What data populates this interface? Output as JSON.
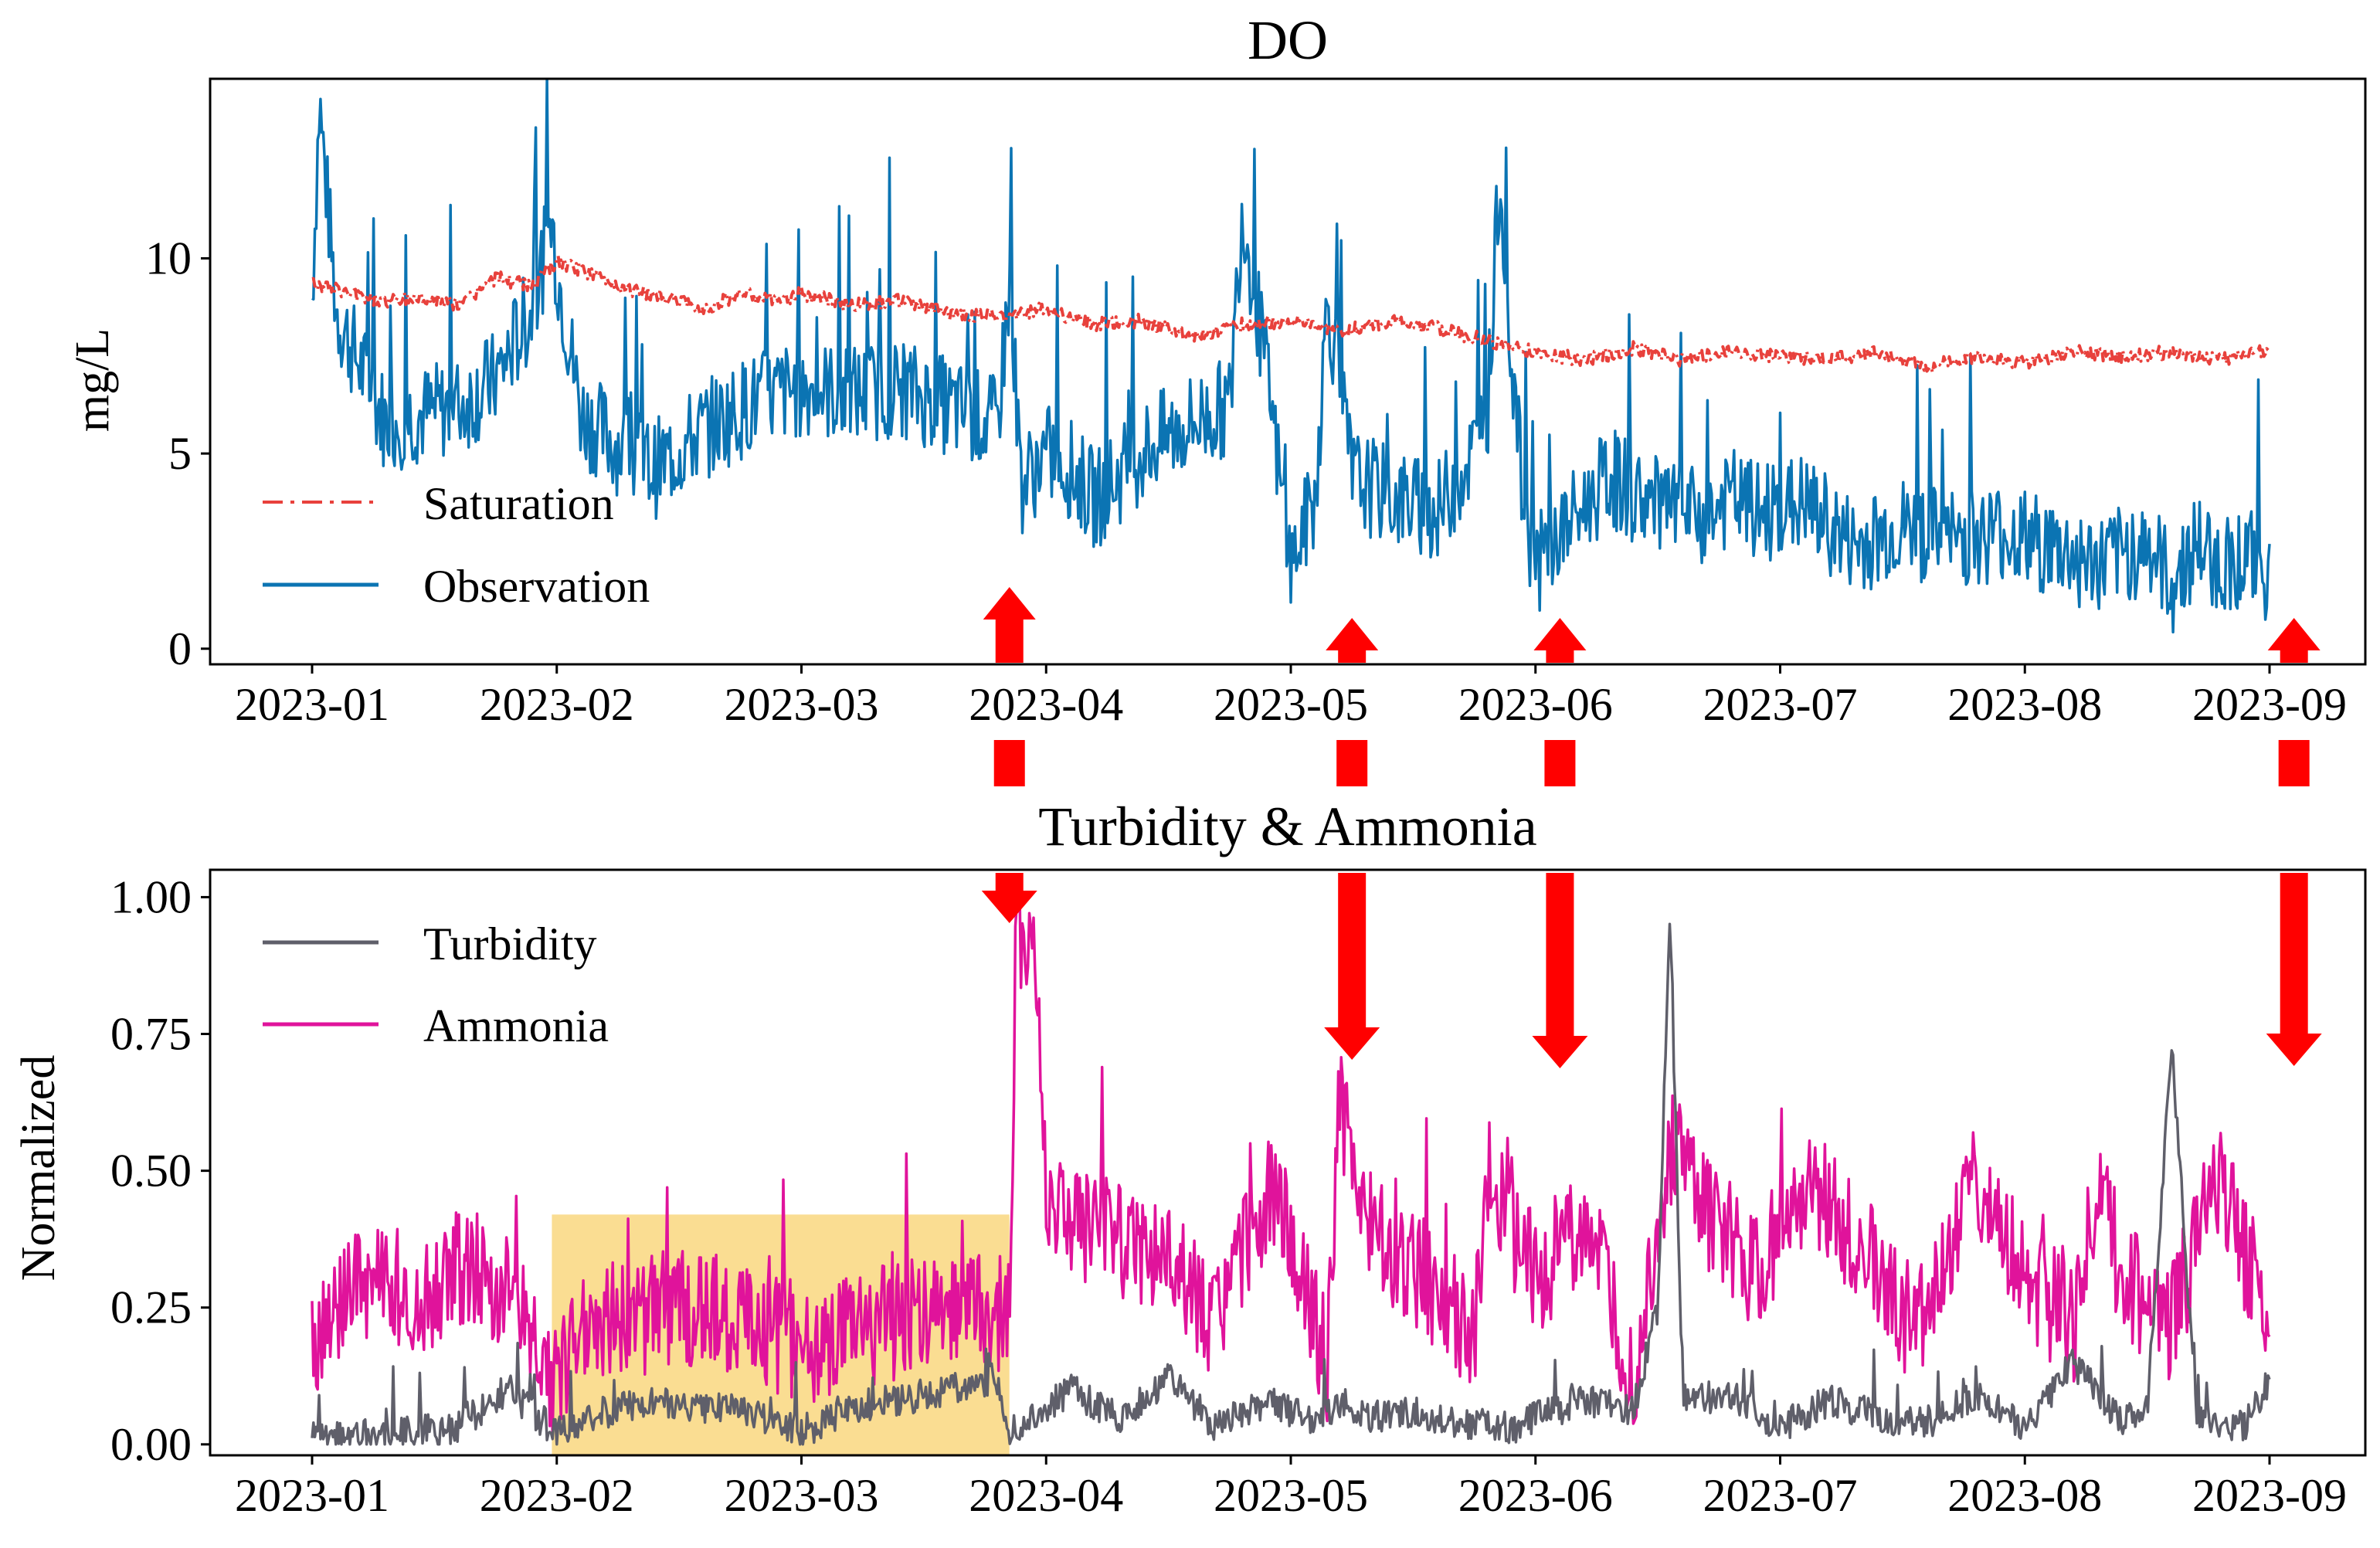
{
  "chart_data": [
    {
      "type": "line",
      "title": "DO",
      "xlabel": "",
      "ylabel": "mg/L",
      "ylim": [
        -0.4,
        14.6
      ],
      "yticks": [
        0,
        5,
        10
      ],
      "xticks": [
        "2023-01",
        "2023-02",
        "2023-03",
        "2023-04",
        "2023-05",
        "2023-06",
        "2023-07",
        "2023-08",
        "2023-09"
      ],
      "legend_position": "center-left",
      "series": [
        {
          "name": "Saturation",
          "color": "#e8413c",
          "style": "dash-dot",
          "x": [
            0,
            0.15,
            0.3,
            0.45,
            0.6,
            0.75,
            0.9,
            1.0,
            1.15,
            1.3,
            1.45,
            1.6,
            1.75,
            1.9,
            2.0,
            2.2,
            2.4,
            2.6,
            2.8,
            3.0,
            3.2,
            3.4,
            3.6,
            3.8,
            4.0,
            4.2,
            4.4,
            4.6,
            4.8,
            5.0,
            5.2,
            5.4,
            5.6,
            5.8,
            6.0,
            6.2,
            6.4,
            6.6,
            6.8,
            7.0,
            7.2,
            7.4,
            7.6,
            7.8,
            8.0
          ],
          "values": [
            9.4,
            9.1,
            8.9,
            9.0,
            8.8,
            9.5,
            9.3,
            9.9,
            9.6,
            9.2,
            9.0,
            8.7,
            9.1,
            8.9,
            9.1,
            8.8,
            8.9,
            8.6,
            8.5,
            8.7,
            8.3,
            8.4,
            8.0,
            8.3,
            8.4,
            8.1,
            8.4,
            8.2,
            7.9,
            7.6,
            7.4,
            7.7,
            7.4,
            7.6,
            7.5,
            7.4,
            7.6,
            7.2,
            7.5,
            7.3,
            7.6,
            7.5,
            7.6,
            7.4,
            7.7
          ]
        },
        {
          "name": "Observation",
          "color": "#0b74b3",
          "style": "solid",
          "x": [
            0,
            0.03,
            0.1,
            0.2,
            0.3,
            0.45,
            0.6,
            0.75,
            0.9,
            0.98,
            1.0,
            1.1,
            1.25,
            1.4,
            1.6,
            1.8,
            2.0,
            2.2,
            2.4,
            2.6,
            2.8,
            2.85,
            2.9,
            3.0,
            3.1,
            3.2,
            3.4,
            3.6,
            3.75,
            3.8,
            3.9,
            4.0,
            4.1,
            4.15,
            4.25,
            4.4,
            4.6,
            4.8,
            4.85,
            4.95,
            5.0,
            5.1,
            5.3,
            5.5,
            5.7,
            5.8,
            5.9,
            6.1,
            6.3,
            6.5,
            6.7,
            6.9,
            7.1,
            7.3,
            7.5,
            7.6,
            7.7,
            7.8,
            7.9,
            8.0
          ],
          "values": [
            9.0,
            14.0,
            8.6,
            7.2,
            5.8,
            6.0,
            6.2,
            6.9,
            8.7,
            10.9,
            9.8,
            6.0,
            5.2,
            4.6,
            5.6,
            6.3,
            6.7,
            6.5,
            6.7,
            6.2,
            5.7,
            9.3,
            4.2,
            5.0,
            4.6,
            3.8,
            5.1,
            5.8,
            6.2,
            11.3,
            7.1,
            2.1,
            3.9,
            9.0,
            4.4,
            3.9,
            3.5,
            5.6,
            11.8,
            3.7,
            2.1,
            2.9,
            4.4,
            3.6,
            3.3,
            3.9,
            3.5,
            3.7,
            2.6,
            3.1,
            2.8,
            3.0,
            2.6,
            2.1,
            2.7,
            1.6,
            2.7,
            2.1,
            2.4,
            1.9
          ]
        }
      ]
    },
    {
      "type": "line",
      "title": "Turbidity & Ammonia",
      "xlabel": "",
      "ylabel": "Normalized",
      "ylim": [
        -0.02,
        1.05
      ],
      "yticks": [
        "0.00",
        "0.25",
        "0.50",
        "0.75",
        "1.00"
      ],
      "xticks": [
        "2023-01",
        "2023-02",
        "2023-03",
        "2023-04",
        "2023-05",
        "2023-06",
        "2023-07",
        "2023-08",
        "2023-09"
      ],
      "legend_position": "top-left",
      "highlight": {
        "x_start": 0.98,
        "x_end": 2.85,
        "y_start": 0.0,
        "y_end": 0.42,
        "color": "#f6c64a"
      },
      "series": [
        {
          "name": "Turbidity",
          "color": "#5f5f6a",
          "style": "solid",
          "x": [
            0,
            0.3,
            0.6,
            0.8,
            1.0,
            1.2,
            1.4,
            1.6,
            1.8,
            2.0,
            2.2,
            2.4,
            2.6,
            2.8,
            2.85,
            2.9,
            3.1,
            3.3,
            3.5,
            3.7,
            3.9,
            4.1,
            4.2,
            4.3,
            4.5,
            4.7,
            4.9,
            5.0,
            5.2,
            5.4,
            5.5,
            5.55,
            5.6,
            5.8,
            6.0,
            6.2,
            6.4,
            6.6,
            6.8,
            7.0,
            7.2,
            7.4,
            7.5,
            7.6,
            7.7,
            7.9,
            8.0
          ],
          "values": [
            0.01,
            0.02,
            0.03,
            0.1,
            0.02,
            0.06,
            0.08,
            0.07,
            0.06,
            0.02,
            0.07,
            0.08,
            0.1,
            0.12,
            0.02,
            0.03,
            0.1,
            0.05,
            0.12,
            0.03,
            0.08,
            0.04,
            0.08,
            0.05,
            0.06,
            0.04,
            0.03,
            0.05,
            0.08,
            0.06,
            0.25,
            1.0,
            0.08,
            0.09,
            0.03,
            0.08,
            0.05,
            0.04,
            0.09,
            0.03,
            0.15,
            0.04,
            0.06,
            0.73,
            0.05,
            0.03,
            0.12
          ]
        },
        {
          "name": "Ammonia",
          "color": "#e0139b",
          "style": "solid",
          "x": [
            0,
            0.1,
            0.3,
            0.5,
            0.6,
            0.8,
            1.0,
            1.1,
            1.3,
            1.5,
            1.7,
            1.9,
            2.1,
            2.3,
            2.5,
            2.7,
            2.85,
            2.88,
            2.95,
            3.0,
            3.1,
            3.3,
            3.5,
            3.7,
            3.9,
            4.0,
            4.15,
            4.2,
            4.3,
            4.5,
            4.6,
            4.75,
            4.8,
            4.9,
            5.0,
            5.2,
            5.4,
            5.55,
            5.7,
            5.9,
            6.1,
            6.3,
            6.5,
            6.6,
            6.8,
            7.0,
            7.2,
            7.3,
            7.4,
            7.6,
            7.8,
            7.9,
            8.0
          ],
          "values": [
            0.16,
            0.26,
            0.3,
            0.27,
            0.33,
            0.28,
            0.1,
            0.24,
            0.22,
            0.26,
            0.23,
            0.2,
            0.18,
            0.22,
            0.23,
            0.26,
            0.23,
            0.94,
            0.92,
            0.45,
            0.4,
            0.38,
            0.33,
            0.22,
            0.45,
            0.4,
            0.14,
            0.64,
            0.4,
            0.32,
            0.28,
            0.2,
            0.5,
            0.4,
            0.3,
            0.42,
            0.1,
            0.55,
            0.42,
            0.3,
            0.48,
            0.38,
            0.24,
            0.22,
            0.48,
            0.3,
            0.22,
            0.48,
            0.3,
            0.22,
            0.5,
            0.35,
            0.25
          ]
        }
      ]
    }
  ],
  "annotations": {
    "arrow_color": "#ff0000",
    "event_dates_x": [
      2.85,
      4.25,
      5.1,
      8.1
    ]
  }
}
